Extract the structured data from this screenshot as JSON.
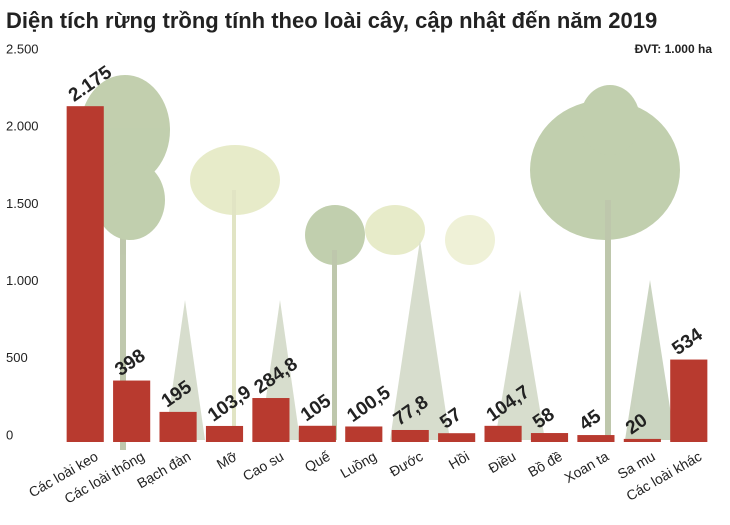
{
  "chart_data": {
    "type": "bar",
    "title": "Diện tích rừng trồng tính theo loài cây, cập nhật đến năm 2019",
    "unit": "ĐVT: 1.000 ha",
    "categories": [
      "Các loài keo",
      "Các loài thông",
      "Bạch đàn",
      "Mỡ",
      "Cao su",
      "Quế",
      "Luồng",
      "Đước",
      "Hồi",
      "Điều",
      "Bồ đề",
      "Xoan ta",
      "Sa mu",
      "Các loài khác"
    ],
    "values": [
      2175,
      398,
      195,
      103.9,
      284.8,
      105,
      100.5,
      77.8,
      57,
      104.7,
      58,
      45,
      20,
      534
    ],
    "value_labels": [
      "2.175",
      "398",
      "195",
      "103,9",
      "284,8",
      "105",
      "100,5",
      "77,8",
      "57",
      "104,7",
      "58",
      "45",
      "20",
      "534"
    ],
    "color": "#b83a2f",
    "ylim": [
      0,
      2500
    ],
    "yticks": [
      0,
      500,
      {
        "value": 1000,
        "label": "1.000"
      },
      {
        "value": 1500,
        "label": "1.500"
      },
      {
        "value": 2000,
        "label": "2.000"
      },
      {
        "value": 2500,
        "label": "2.500"
      }
    ]
  }
}
